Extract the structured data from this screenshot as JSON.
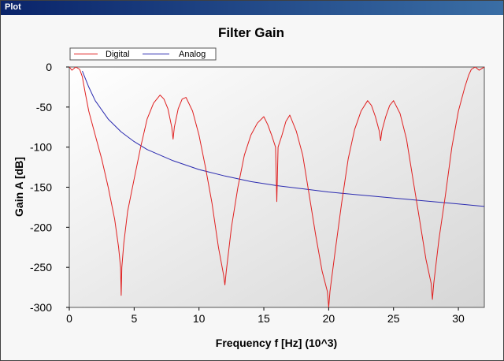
{
  "window": {
    "title": "Plot"
  },
  "chart_data": {
    "type": "line",
    "title": "Filter Gain",
    "xlabel": "Frequency f [Hz] (10^3)",
    "ylabel": "Gain A [dB]",
    "xlim": [
      0,
      32
    ],
    "ylim": [
      -300,
      0
    ],
    "x_ticks": [
      0,
      5,
      10,
      15,
      20,
      25,
      30
    ],
    "y_ticks": [
      0,
      -50,
      -100,
      -150,
      -200,
      -250,
      -300
    ],
    "legend": {
      "position": "top-left",
      "entries": [
        "Digital",
        "Analog"
      ]
    },
    "colors": {
      "Digital": "#e02020",
      "Analog": "#2b2bb0"
    },
    "grid": false,
    "series": [
      {
        "name": "Digital",
        "x": [
          0,
          0.2,
          0.5,
          0.8,
          1.0,
          1.2,
          1.5,
          2.0,
          2.5,
          3.0,
          3.5,
          3.8,
          3.95,
          4.0,
          4.05,
          4.2,
          4.5,
          5.0,
          5.5,
          6.0,
          6.5,
          7.0,
          7.3,
          7.6,
          7.9,
          8.0,
          8.1,
          8.4,
          8.7,
          9.0,
          9.5,
          10.0,
          10.5,
          11.0,
          11.5,
          11.9,
          12.0,
          12.1,
          12.5,
          13.0,
          13.5,
          14.0,
          14.5,
          15.0,
          15.3,
          15.6,
          15.9,
          16.0,
          16.1,
          16.4,
          16.7,
          17.0,
          17.5,
          18.0,
          18.5,
          19.0,
          19.5,
          19.9,
          20.0,
          20.1,
          20.5,
          21.0,
          21.5,
          22.0,
          22.5,
          23.0,
          23.3,
          23.6,
          23.9,
          24.0,
          24.1,
          24.4,
          24.7,
          25.0,
          25.5,
          26.0,
          26.5,
          27.0,
          27.5,
          27.9,
          28.0,
          28.1,
          28.5,
          29.0,
          29.5,
          30.0,
          30.5,
          30.8,
          31.0,
          31.3,
          31.6,
          32.0
        ],
        "y": [
          0,
          -4,
          0,
          -3,
          -12,
          -30,
          -55,
          -85,
          -115,
          -150,
          -190,
          -225,
          -250,
          -285,
          -250,
          -220,
          -180,
          -140,
          -100,
          -65,
          -45,
          -35,
          -40,
          -52,
          -75,
          -90,
          -75,
          -52,
          -40,
          -38,
          -55,
          -85,
          -125,
          -170,
          -225,
          -260,
          -272,
          -255,
          -200,
          -150,
          -110,
          -85,
          -70,
          -62,
          -72,
          -85,
          -100,
          -168,
          -100,
          -85,
          -68,
          -60,
          -80,
          -110,
          -160,
          -210,
          -255,
          -280,
          -300,
          -280,
          -230,
          -170,
          -115,
          -78,
          -55,
          -42,
          -48,
          -62,
          -80,
          -92,
          -80,
          -62,
          -48,
          -42,
          -58,
          -90,
          -140,
          -190,
          -240,
          -270,
          -290,
          -270,
          -215,
          -160,
          -100,
          -55,
          -25,
          -10,
          -3,
          0,
          -4,
          0
        ]
      },
      {
        "name": "Analog",
        "x": [
          1.0,
          1.5,
          2.0,
          3.0,
          4.0,
          5.0,
          6.0,
          8.0,
          10.0,
          12.0,
          14.0,
          16.0,
          18.0,
          20.0,
          22.0,
          24.0,
          26.0,
          28.0,
          30.0,
          32.0
        ],
        "y": [
          -5,
          -25,
          -42,
          -65,
          -81,
          -93,
          -103,
          -117,
          -128,
          -136,
          -143,
          -148,
          -152,
          -156,
          -159,
          -162,
          -165,
          -168,
          -171,
          -174
        ]
      }
    ]
  }
}
